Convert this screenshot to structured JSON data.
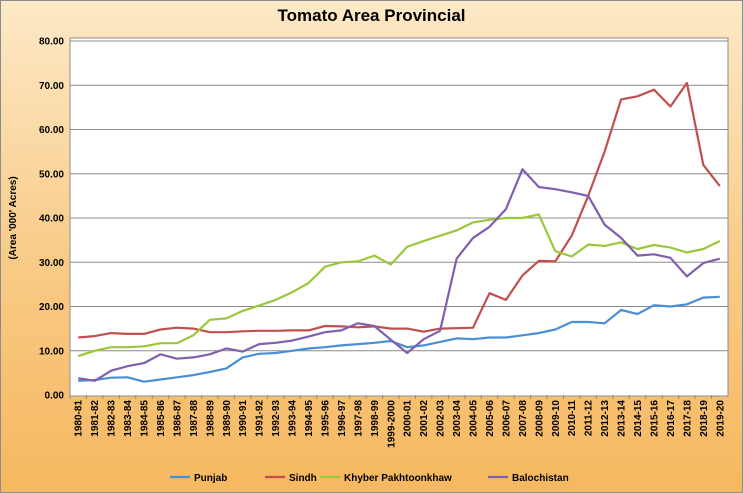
{
  "chart_data": {
    "type": "line",
    "title": "Tomato Area Provincial",
    "ylabel": "(Area '000' Acres)",
    "xlabel": "",
    "ylim": [
      0,
      80
    ],
    "yticks": [
      "0.00",
      "10.00",
      "20.00",
      "30.00",
      "40.00",
      "50.00",
      "60.00",
      "70.00",
      "80.00"
    ],
    "grid": true,
    "legend_position": "bottom",
    "categories": [
      "1980-81",
      "1981-82",
      "1982-83",
      "1983-84",
      "1984-85",
      "1985-86",
      "1986-87",
      "1987-88",
      "1988-89",
      "1989-90",
      "1990-91",
      "1991-92",
      "1992-93",
      "1993-94",
      "1994-95",
      "1995-96",
      "1996-97",
      "1997-98",
      "1998-99",
      "1999-2000",
      "2000-01",
      "2001-02",
      "2002-03",
      "2003-04",
      "2004-05",
      "2005-06",
      "2006-07",
      "2007-08",
      "2008-09",
      "2009-10",
      "2010-11",
      "2011-12",
      "2012-13",
      "2013-14",
      "2014-15",
      "2015-16",
      "2016-17",
      "2017-18",
      "2018-19",
      "2019-20"
    ],
    "series": [
      {
        "name": "Punjab",
        "color": "#4a8fd4",
        "values": [
          3.2,
          3.4,
          3.9,
          4.0,
          3.0,
          3.5,
          4.0,
          4.5,
          5.2,
          6.0,
          8.5,
          9.3,
          9.5,
          10.0,
          10.5,
          10.8,
          11.2,
          11.5,
          11.8,
          12.2,
          10.8,
          11.2,
          12.0,
          12.8,
          12.6,
          13.0,
          13.0,
          13.5,
          14.0,
          14.8,
          16.5,
          16.5,
          16.2,
          19.2,
          18.3,
          20.3,
          20.0,
          20.5,
          22.0,
          22.2
        ]
      },
      {
        "name": "Sindh",
        "color": "#c0504d",
        "values": [
          13.0,
          13.3,
          14.0,
          13.8,
          13.8,
          14.8,
          15.2,
          15.0,
          14.2,
          14.2,
          14.4,
          14.5,
          14.5,
          14.6,
          14.6,
          15.6,
          15.5,
          15.3,
          15.5,
          15.0,
          15.0,
          14.3,
          15.0,
          15.1,
          15.2,
          23.0,
          21.5,
          27.0,
          30.3,
          30.2,
          36.0,
          45.0,
          55.0,
          66.8,
          67.5,
          69.0,
          65.2,
          70.5,
          52.0,
          47.2
        ]
      },
      {
        "name": "Khyber Pakhtoonkhaw",
        "color": "#9bc83a",
        "values": [
          8.8,
          10.0,
          10.8,
          10.8,
          11.0,
          11.7,
          11.7,
          13.5,
          17.0,
          17.3,
          19.0,
          20.2,
          21.5,
          23.2,
          25.3,
          29.0,
          30.0,
          30.2,
          31.5,
          29.5,
          33.5,
          34.8,
          36.0,
          37.2,
          39.0,
          39.6,
          40.0,
          40.0,
          40.8,
          32.5,
          31.3,
          34.0,
          33.7,
          34.5,
          33.0,
          33.9,
          33.3,
          32.2,
          33.0,
          34.8
        ]
      },
      {
        "name": "Balochistan",
        "color": "#7f5fae",
        "values": [
          3.8,
          3.2,
          5.5,
          6.5,
          7.2,
          9.2,
          8.2,
          8.5,
          9.2,
          10.5,
          9.8,
          11.5,
          11.8,
          12.3,
          13.2,
          14.2,
          14.6,
          16.2,
          15.6,
          12.5,
          9.5,
          12.6,
          14.5,
          30.8,
          35.5,
          38.0,
          42.0,
          51.0,
          47.0,
          46.5,
          45.8,
          45.0,
          38.5,
          35.5,
          31.5,
          31.8,
          31.0,
          26.8,
          29.8,
          30.8
        ]
      }
    ]
  }
}
